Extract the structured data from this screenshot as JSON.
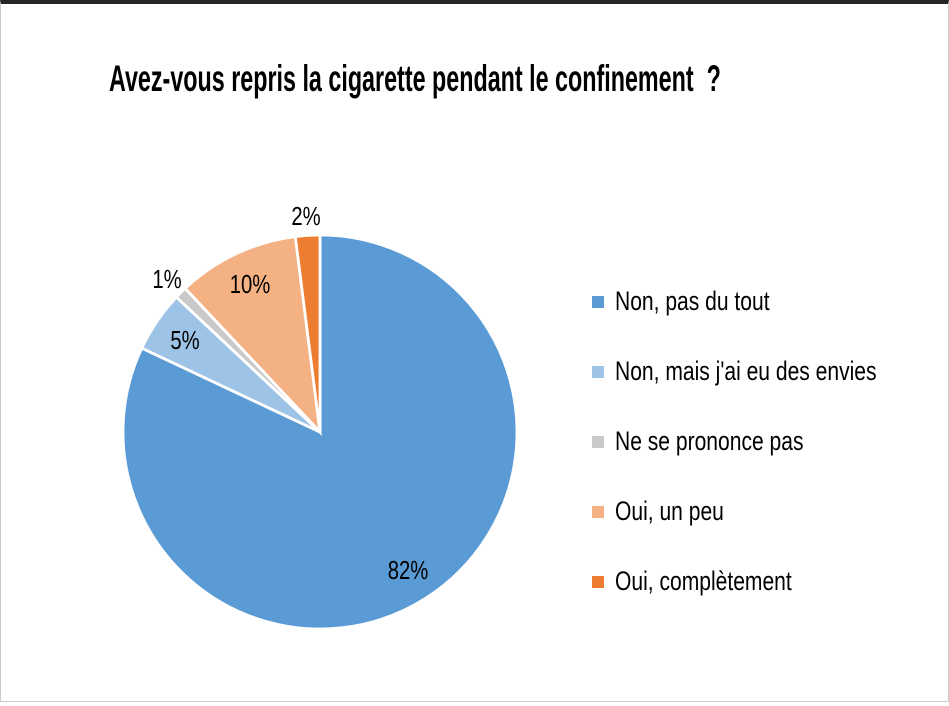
{
  "window": {
    "top_border_color": "#262626",
    "frame_border_color": "#cbcbcb",
    "background_color": "#ffffff"
  },
  "chart_data": {
    "type": "pie",
    "title": "Avez-vous repris la cigarette pendant le confinement  ?",
    "legend_position": "right",
    "direction": "clockwise",
    "start_angle_deg": 0,
    "total": 100,
    "data_labels": "percent",
    "text_color": "#000000",
    "slice_separator_color": "#ffffff",
    "slices": [
      {
        "label": "Non, pas du tout",
        "value": 82,
        "pct_label": "82%",
        "color": "#5B9BD5",
        "label_placement": "inside"
      },
      {
        "label": "Non, mais j'ai eu des envies",
        "value": 5,
        "pct_label": "5%",
        "color": "#9DC3E6",
        "label_placement": "inside"
      },
      {
        "label": "Ne se prononce pas",
        "value": 1,
        "pct_label": "1%",
        "color": "#C9C9C9",
        "label_placement": "outside"
      },
      {
        "label": "Oui, un peu",
        "value": 10,
        "pct_label": "10%",
        "color": "#F4B183",
        "label_placement": "inside"
      },
      {
        "label": "Oui, complètement",
        "value": 2,
        "pct_label": "2%",
        "color": "#ED7D31",
        "label_placement": "outside"
      }
    ]
  }
}
